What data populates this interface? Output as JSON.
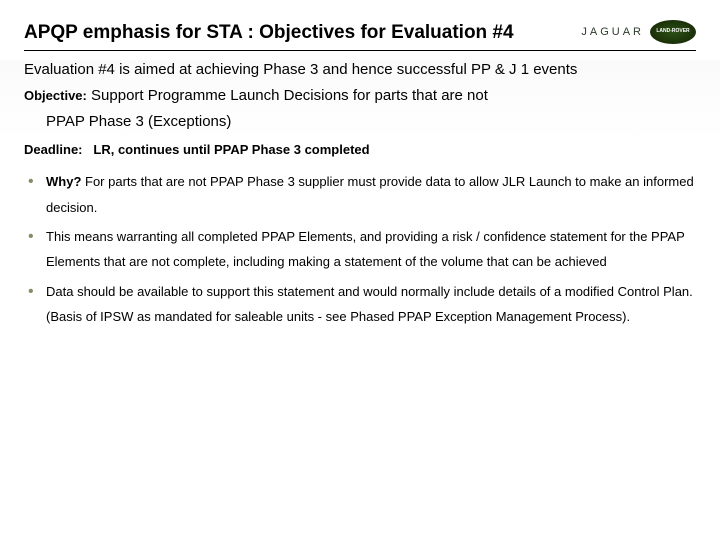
{
  "header": {
    "title": "APQP emphasis for STA : Objectives for Evaluation #4",
    "brand_text": "JAGUAR",
    "brand_logo_text": "LAND-ROVER"
  },
  "intro": "Evaluation #4 is aimed at achieving Phase 3 and hence successful PP & J 1 events",
  "objective": {
    "label": "Objective:",
    "line1": "Support Programme Launch Decisions for parts that are not",
    "line2": "PPAP Phase 3  (Exceptions)"
  },
  "deadline": {
    "label": "Deadline:",
    "text": "LR, continues until PPAP Phase 3 completed"
  },
  "bullets": [
    {
      "label": "Why?",
      "text": " For parts that are not PPAP Phase 3  supplier must provide data to allow JLR Launch to make an informed decision."
    },
    {
      "label": "",
      "text": "This means warranting all completed PPAP Elements, and providing a risk / confidence statement for the PPAP Elements that are not complete, including making a statement of the volume that can be achieved"
    },
    {
      "label": "",
      "text": "Data should be available to support this statement and would normally include details of a modified Control Plan.  (Basis of IPSW as mandated for saleable units - see Phased PPAP Exception Management Process)."
    }
  ],
  "colors": {
    "bullet_marker": "#8a8a66",
    "text": "#000000",
    "background": "#ffffff"
  }
}
